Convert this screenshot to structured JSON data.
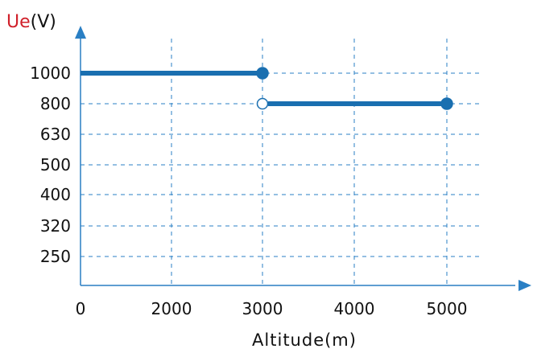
{
  "chart_data": {
    "type": "line",
    "title": "",
    "ylabel_symbol": "Ue",
    "ylabel_unit": "(V)",
    "xlabel": "Altitude(m)",
    "x_ticks": [
      "0",
      "2000",
      "3000",
      "4000",
      "5000"
    ],
    "y_ticks": [
      "250",
      "320",
      "400",
      "500",
      "630",
      "800",
      "1000"
    ],
    "grid": "dashed",
    "series": [
      {
        "segments": [
          {
            "x": [
              0,
              3000
            ],
            "y": [
              1000,
              1000
            ],
            "end_marker": "filled"
          },
          {
            "x": [
              3000,
              5000
            ],
            "y": [
              800,
              800
            ],
            "start_marker": "open",
            "end_marker": "filled"
          }
        ]
      }
    ],
    "colors": {
      "line": "#1a6fb0",
      "axis": "#2a7fc4",
      "grid": "#2a7fc4",
      "ylabel_symbol": "#d0202a",
      "text": "#111111"
    }
  }
}
